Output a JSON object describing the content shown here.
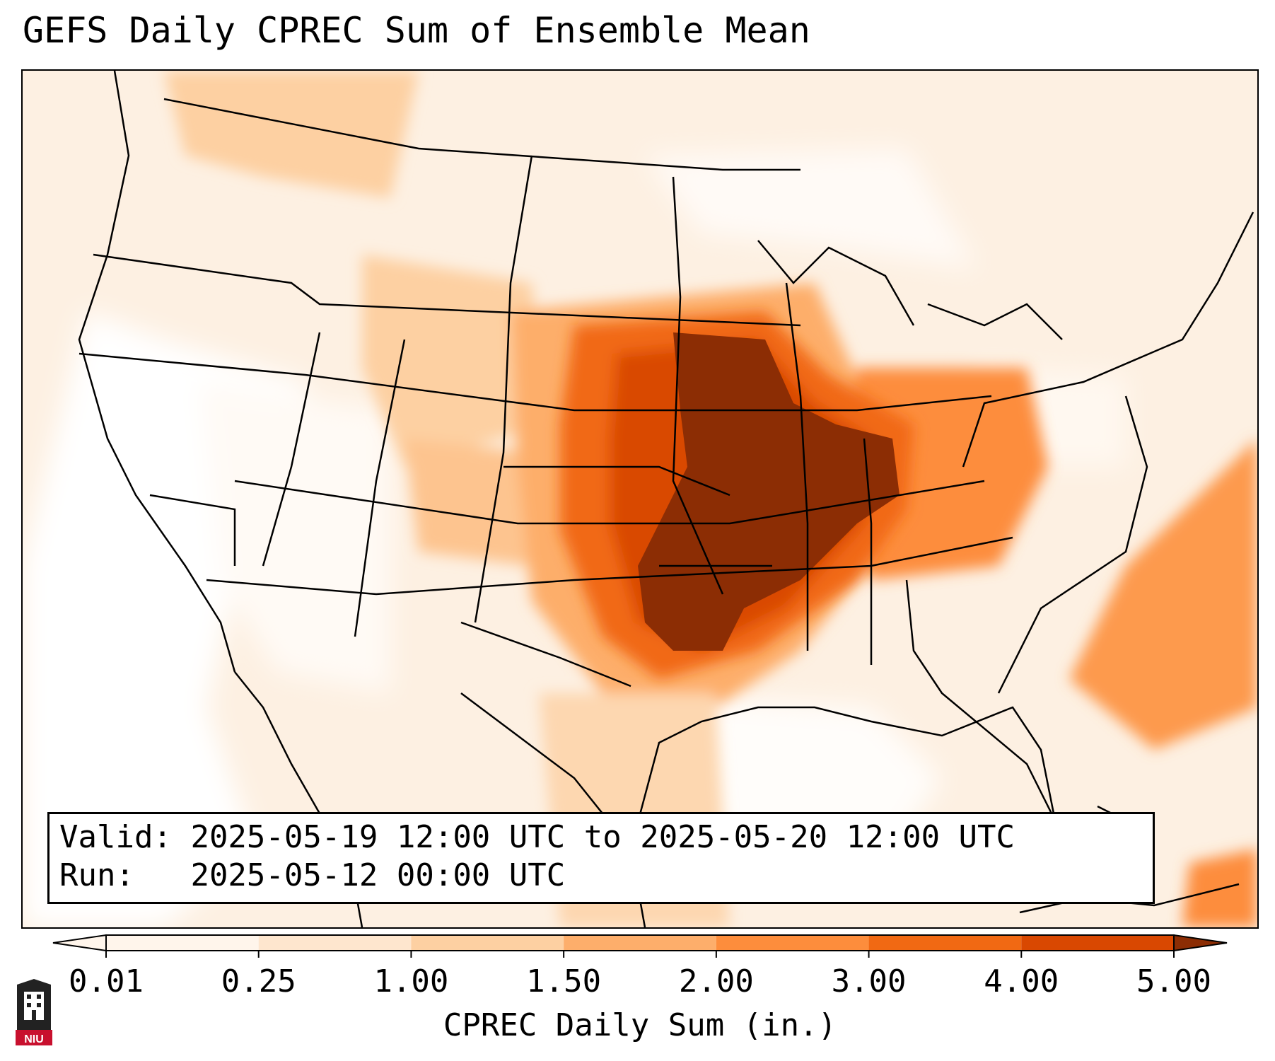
{
  "title": "GEFS Daily CPREC Sum of Ensemble Mean",
  "info": {
    "valid_label": "Valid:",
    "valid_value": "2025-05-19 12:00 UTC to 2025-05-20 12:00 UTC",
    "run_label": "Run:",
    "run_value": "2025-05-12 00:00 UTC"
  },
  "colorbar": {
    "label": "CPREC Daily Sum (in.)",
    "ticks": [
      "0.01",
      "0.25",
      "1.00",
      "1.50",
      "2.00",
      "3.00",
      "4.00",
      "5.00"
    ],
    "colors": [
      "#fff5eb",
      "#fee6ce",
      "#fdd0a2",
      "#fdae6b",
      "#fd8d3c",
      "#f16913",
      "#d94801",
      "#8c2d04"
    ]
  },
  "logo": {
    "text": "NIU",
    "icon": "niu-logo-icon"
  },
  "map": {
    "region": "Contiguous United States",
    "field": "CPREC",
    "max_region": "Mid-Mississippi Valley"
  }
}
